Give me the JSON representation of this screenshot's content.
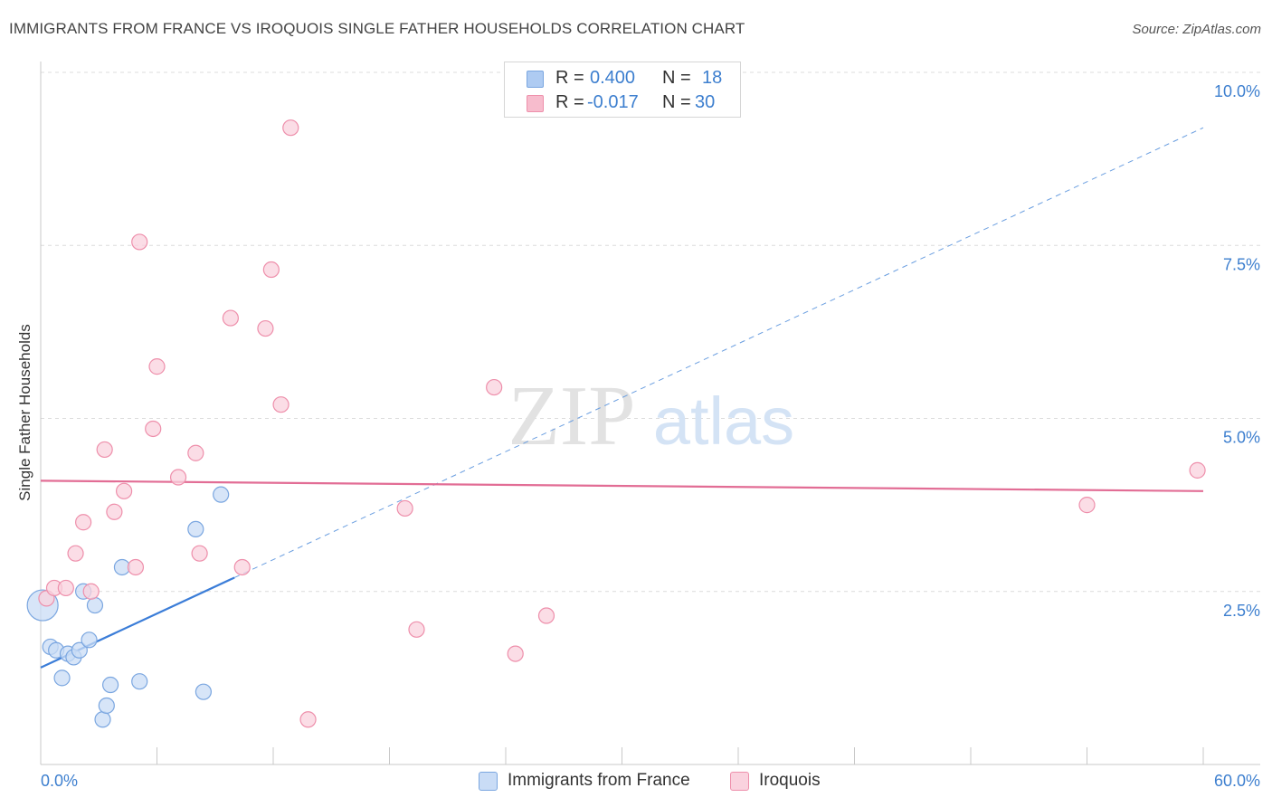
{
  "title": "IMMIGRANTS FROM FRANCE VS IROQUOIS SINGLE FATHER HOUSEHOLDS CORRELATION CHART",
  "source": "Source: ZipAtlas.com",
  "watermark": {
    "zip": "ZIP",
    "atlas": "atlas"
  },
  "stats_legend": {
    "rows": [
      {
        "r_label": "R =",
        "r_value": "0.400",
        "n_label": "N =",
        "n_value": "18",
        "color": "#aecbf2",
        "stroke": "#7aa6e0"
      },
      {
        "r_label": "R =",
        "r_value": "-0.017",
        "n_label": "N =",
        "n_value": "30",
        "color": "#f7bccd",
        "stroke": "#ee8fab"
      }
    ]
  },
  "legend": {
    "items": [
      {
        "label": "Immigrants from France",
        "color": "#c9dcf6",
        "stroke": "#7aa6e0"
      },
      {
        "label": "Iroquois",
        "color": "#fad2de",
        "stroke": "#ee8fab"
      }
    ]
  },
  "chart_data": {
    "type": "scatter",
    "title": "IMMIGRANTS FROM FRANCE VS IROQUOIS SINGLE FATHER HOUSEHOLDS CORRELATION CHART",
    "xlabel": "",
    "ylabel": "Single Father Households",
    "xlim": [
      0,
      60
    ],
    "ylim": [
      0,
      10.3
    ],
    "x_tick_labels": [
      "0.0%",
      "60.0%"
    ],
    "y_ticks": [
      2.5,
      5.0,
      7.5,
      10.0
    ],
    "y_tick_labels": [
      "2.5%",
      "5.0%",
      "7.5%",
      "10.0%"
    ],
    "grid": true,
    "series": [
      {
        "name": "Immigrants from France",
        "color": "#3b7dd8",
        "fill": "#c9dcf6",
        "stroke": "#7aa6e0",
        "points": [
          {
            "x": 0.1,
            "y": 2.3,
            "size": "large"
          },
          {
            "x": 0.5,
            "y": 1.7
          },
          {
            "x": 0.8,
            "y": 1.65
          },
          {
            "x": 1.1,
            "y": 1.25
          },
          {
            "x": 1.4,
            "y": 1.6
          },
          {
            "x": 1.7,
            "y": 1.55
          },
          {
            "x": 2.0,
            "y": 1.65
          },
          {
            "x": 2.2,
            "y": 2.5
          },
          {
            "x": 2.5,
            "y": 1.8
          },
          {
            "x": 2.8,
            "y": 2.3
          },
          {
            "x": 3.2,
            "y": 0.65
          },
          {
            "x": 3.4,
            "y": 0.85
          },
          {
            "x": 3.6,
            "y": 1.15
          },
          {
            "x": 4.2,
            "y": 2.85
          },
          {
            "x": 5.1,
            "y": 1.2
          },
          {
            "x": 8.0,
            "y": 3.4
          },
          {
            "x": 8.4,
            "y": 1.05
          },
          {
            "x": 9.3,
            "y": 3.9
          }
        ],
        "trend": {
          "x0": 0,
          "y0": 1.4,
          "x1": 10,
          "y1": 2.7,
          "extended_x1": 60,
          "extended_y1": 9.2
        }
      },
      {
        "name": "Iroquois",
        "color": "#e26d95",
        "fill": "#fad2de",
        "stroke": "#ee8fab",
        "points": [
          {
            "x": 0.3,
            "y": 2.4
          },
          {
            "x": 0.7,
            "y": 2.55
          },
          {
            "x": 1.3,
            "y": 2.55
          },
          {
            "x": 1.8,
            "y": 3.05
          },
          {
            "x": 2.2,
            "y": 3.5
          },
          {
            "x": 2.6,
            "y": 2.5
          },
          {
            "x": 3.3,
            "y": 4.55
          },
          {
            "x": 3.8,
            "y": 3.65
          },
          {
            "x": 4.3,
            "y": 3.95
          },
          {
            "x": 4.9,
            "y": 2.85
          },
          {
            "x": 5.1,
            "y": 7.55
          },
          {
            "x": 5.8,
            "y": 4.85
          },
          {
            "x": 6.0,
            "y": 5.75
          },
          {
            "x": 7.1,
            "y": 4.15
          },
          {
            "x": 8.0,
            "y": 4.5
          },
          {
            "x": 8.2,
            "y": 3.05
          },
          {
            "x": 9.8,
            "y": 6.45
          },
          {
            "x": 10.4,
            "y": 2.85
          },
          {
            "x": 11.6,
            "y": 6.3
          },
          {
            "x": 11.9,
            "y": 7.15
          },
          {
            "x": 12.4,
            "y": 5.2
          },
          {
            "x": 12.9,
            "y": 9.2
          },
          {
            "x": 13.8,
            "y": 0.65
          },
          {
            "x": 18.8,
            "y": 3.7
          },
          {
            "x": 19.4,
            "y": 1.95
          },
          {
            "x": 23.4,
            "y": 5.45
          },
          {
            "x": 24.5,
            "y": 1.6
          },
          {
            "x": 26.1,
            "y": 2.15
          },
          {
            "x": 54.0,
            "y": 3.75
          },
          {
            "x": 59.7,
            "y": 4.25
          }
        ],
        "trend": {
          "x0": 0,
          "y0": 4.1,
          "x1": 60,
          "y1": 3.95
        }
      }
    ]
  }
}
